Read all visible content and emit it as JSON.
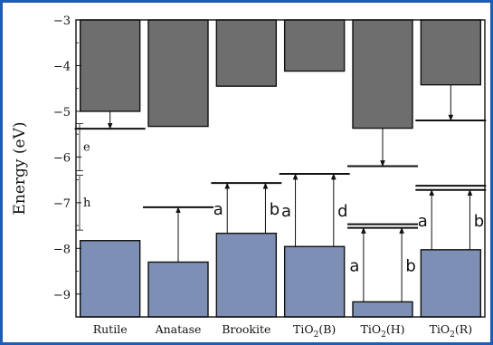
{
  "chart_data": {
    "type": "bar",
    "ylabel": "Energy (eV)",
    "ylim": [
      -9.5,
      -3
    ],
    "yticks": [
      -3,
      -4,
      -5,
      -6,
      -7,
      -8,
      -9
    ],
    "categories": [
      "Rutile",
      "Anatase",
      "Brookite",
      "TiO2(B)",
      "TiO2(H)",
      "TiO2(R)"
    ],
    "category_labels": [
      {
        "base": "Rutile",
        "sub": "",
        "tail": ""
      },
      {
        "base": "Anatase",
        "sub": "",
        "tail": ""
      },
      {
        "base": "Brookite",
        "sub": "",
        "tail": ""
      },
      {
        "base": "TiO",
        "sub": "2",
        "tail": "(B)"
      },
      {
        "base": "TiO",
        "sub": "2",
        "tail": "(H)"
      },
      {
        "base": "TiO",
        "sub": "2",
        "tail": "(R)"
      }
    ],
    "conduction_band_min": [
      -5.0,
      -5.33,
      -4.45,
      -4.12,
      -5.37,
      -4.42
    ],
    "valence_band_max": [
      -7.83,
      -8.3,
      -7.67,
      -7.96,
      -9.17,
      -8.03
    ],
    "transition_levels": [
      [
        -5.38
      ],
      [
        -7.1
      ],
      [
        -6.57
      ],
      [
        -6.37
      ],
      [
        -6.2,
        -7.47,
        -7.55
      ],
      [
        -5.2,
        -6.63,
        -6.72
      ]
    ],
    "arrows": [
      {
        "cat": 0,
        "slot": "center",
        "from": -5.0,
        "to": -5.38,
        "label": ""
      },
      {
        "cat": 1,
        "slot": "center",
        "from": -8.3,
        "to": -7.1,
        "label": ""
      },
      {
        "cat": 2,
        "slot": "left",
        "from": -7.67,
        "to": -6.57,
        "label": "a"
      },
      {
        "cat": 2,
        "slot": "right",
        "from": -7.67,
        "to": -6.57,
        "label": "b"
      },
      {
        "cat": 3,
        "slot": "left",
        "from": -7.96,
        "to": -6.37,
        "label": "a"
      },
      {
        "cat": 3,
        "slot": "right",
        "from": -7.96,
        "to": -6.37,
        "label": "d"
      },
      {
        "cat": 4,
        "slot": "center",
        "from": -5.37,
        "to": -6.2,
        "label": ""
      },
      {
        "cat": 4,
        "slot": "left",
        "from": -9.17,
        "to": -7.55,
        "label": "a"
      },
      {
        "cat": 4,
        "slot": "right",
        "from": -9.17,
        "to": -7.55,
        "label": "b"
      },
      {
        "cat": 5,
        "slot": "center",
        "from": -4.42,
        "to": -5.2,
        "label": ""
      },
      {
        "cat": 5,
        "slot": "left",
        "from": -8.03,
        "to": -6.72,
        "label": "a"
      },
      {
        "cat": 5,
        "slot": "right",
        "from": -8.03,
        "to": -6.72,
        "label": "b"
      }
    ],
    "side_ranges": [
      {
        "label": "e",
        "from": -5.27,
        "to": -6.3
      },
      {
        "label": "h",
        "from": -6.4,
        "to": -7.6
      }
    ],
    "colors": {
      "conduction": "#6e6e6e",
      "valence": "#7d8fb5",
      "frame": "#1f5cb6"
    }
  }
}
